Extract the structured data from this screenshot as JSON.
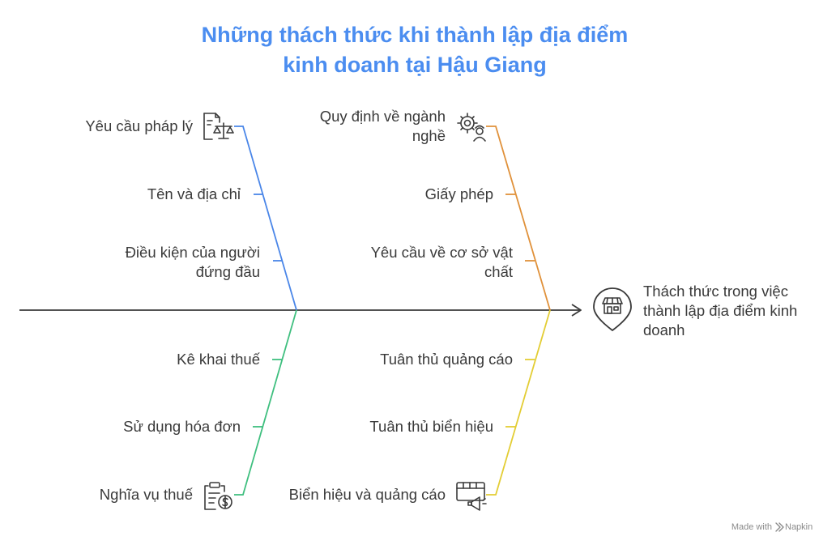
{
  "title": {
    "line1": "Những thách thức khi thành lập địa điểm",
    "line2": "kinh doanh tại Hậu Giang"
  },
  "effect": {
    "lines": [
      "Thách thức trong việc",
      "thành lập địa điểm kinh",
      "doanh"
    ],
    "icon": "store-location-icon"
  },
  "categories": [
    {
      "id": "legal",
      "color": "#4a86e8",
      "label": [
        "Yêu cầu pháp lý"
      ],
      "icon": "legal-document-scale-icon",
      "causes": [
        [
          "Tên và địa chỉ"
        ],
        [
          "Điều kiện của người",
          "đứng đầu"
        ]
      ]
    },
    {
      "id": "industry",
      "color": "#e0913a",
      "label": [
        "Quy định về ngành",
        "nghề"
      ],
      "icon": "gear-worker-icon",
      "causes": [
        [
          "Giấy phép"
        ],
        [
          "Yêu cầu về cơ sở vật",
          "chất"
        ]
      ]
    },
    {
      "id": "tax",
      "color": "#3fbf7f",
      "label": [
        "Nghĩa vụ thuế"
      ],
      "icon": "tax-clipboard-icon",
      "causes": [
        [
          "Kê khai thuế"
        ],
        [
          "Sử dụng hóa đơn"
        ]
      ]
    },
    {
      "id": "signage",
      "color": "#e3cd34",
      "label": [
        "Biển hiệu và quảng cáo"
      ],
      "icon": "billboard-megaphone-icon",
      "causes": [
        [
          "Tuân thủ quảng cáo"
        ],
        [
          "Tuân thủ biển hiệu"
        ]
      ]
    }
  ],
  "watermark": {
    "prefix": "Made with",
    "brand": "Napkin",
    "icon": "napkin-logo-icon"
  },
  "colors": {
    "title": "#4b8df0",
    "spine": "#3a3a3a",
    "text": "#3a3a3a"
  }
}
